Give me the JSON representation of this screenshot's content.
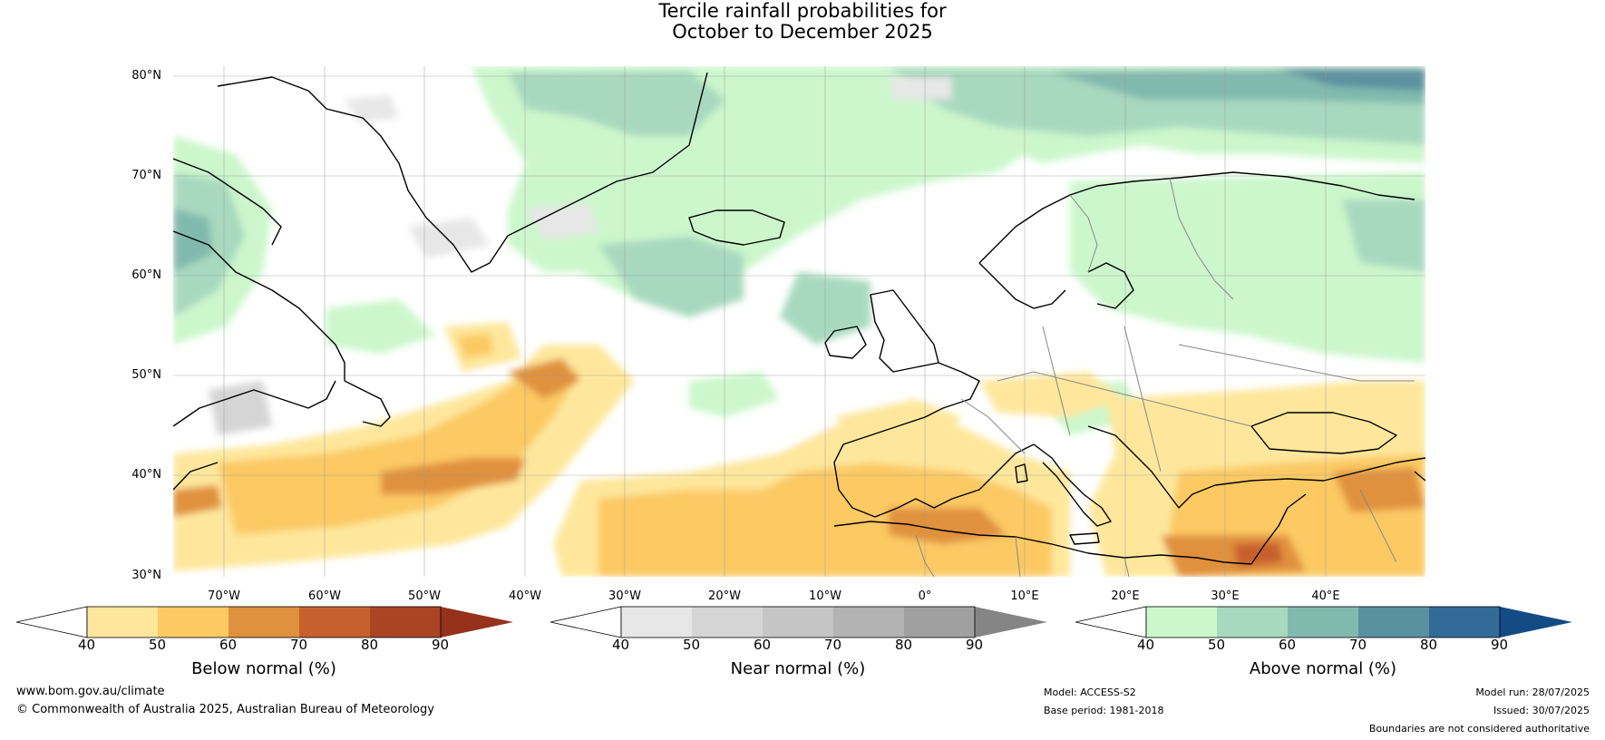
{
  "title_line1": "Tercile rainfall probabilities for",
  "title_line2": "October to December 2025",
  "lat_labels": [
    "80°N",
    "70°N",
    "60°N",
    "50°N",
    "40°N",
    "30°N"
  ],
  "lon_labels": [
    "70°W",
    "60°W",
    "50°W",
    "40°W",
    "30°W",
    "20°W",
    "10°W",
    "0°",
    "10°E",
    "20°E",
    "30°E",
    "40°E"
  ],
  "colorbars": [
    {
      "label": "Below normal (%)",
      "ticks": [
        "40",
        "50",
        "60",
        "70",
        "80",
        "90"
      ],
      "colors": [
        "#ffffff",
        "#fee79c",
        "#fcc963",
        "#e0913e",
        "#c8602e",
        "#aa4423",
        "#95311c"
      ]
    },
    {
      "label": "Near normal (%)",
      "ticks": [
        "40",
        "50",
        "60",
        "70",
        "80",
        "90"
      ],
      "colors": [
        "#ffffff",
        "#e7e7e7",
        "#d5d5d5",
        "#c5c5c5",
        "#b3b3b3",
        "#a0a0a0",
        "#858585"
      ]
    },
    {
      "label": "Above normal (%)",
      "ticks": [
        "40",
        "50",
        "60",
        "70",
        "80",
        "90"
      ],
      "colors": [
        "#ffffff",
        "#ccf7cc",
        "#a8d9bf",
        "#82b9ae",
        "#5a91a0",
        "#336a98",
        "#134b85"
      ]
    }
  ],
  "footer": {
    "website": "www.bom.gov.au/climate",
    "copyright": "© Commonwealth of Australia 2025, Australian Bureau of Meteorology",
    "model": "Model: ACCESS-S2",
    "base_period": "Base period: 1981-2018",
    "model_run": "Model run: 28/07/2025",
    "issued": "Issued: 30/07/2025",
    "disclaimer": "Boundaries are not considered authoritative"
  }
}
